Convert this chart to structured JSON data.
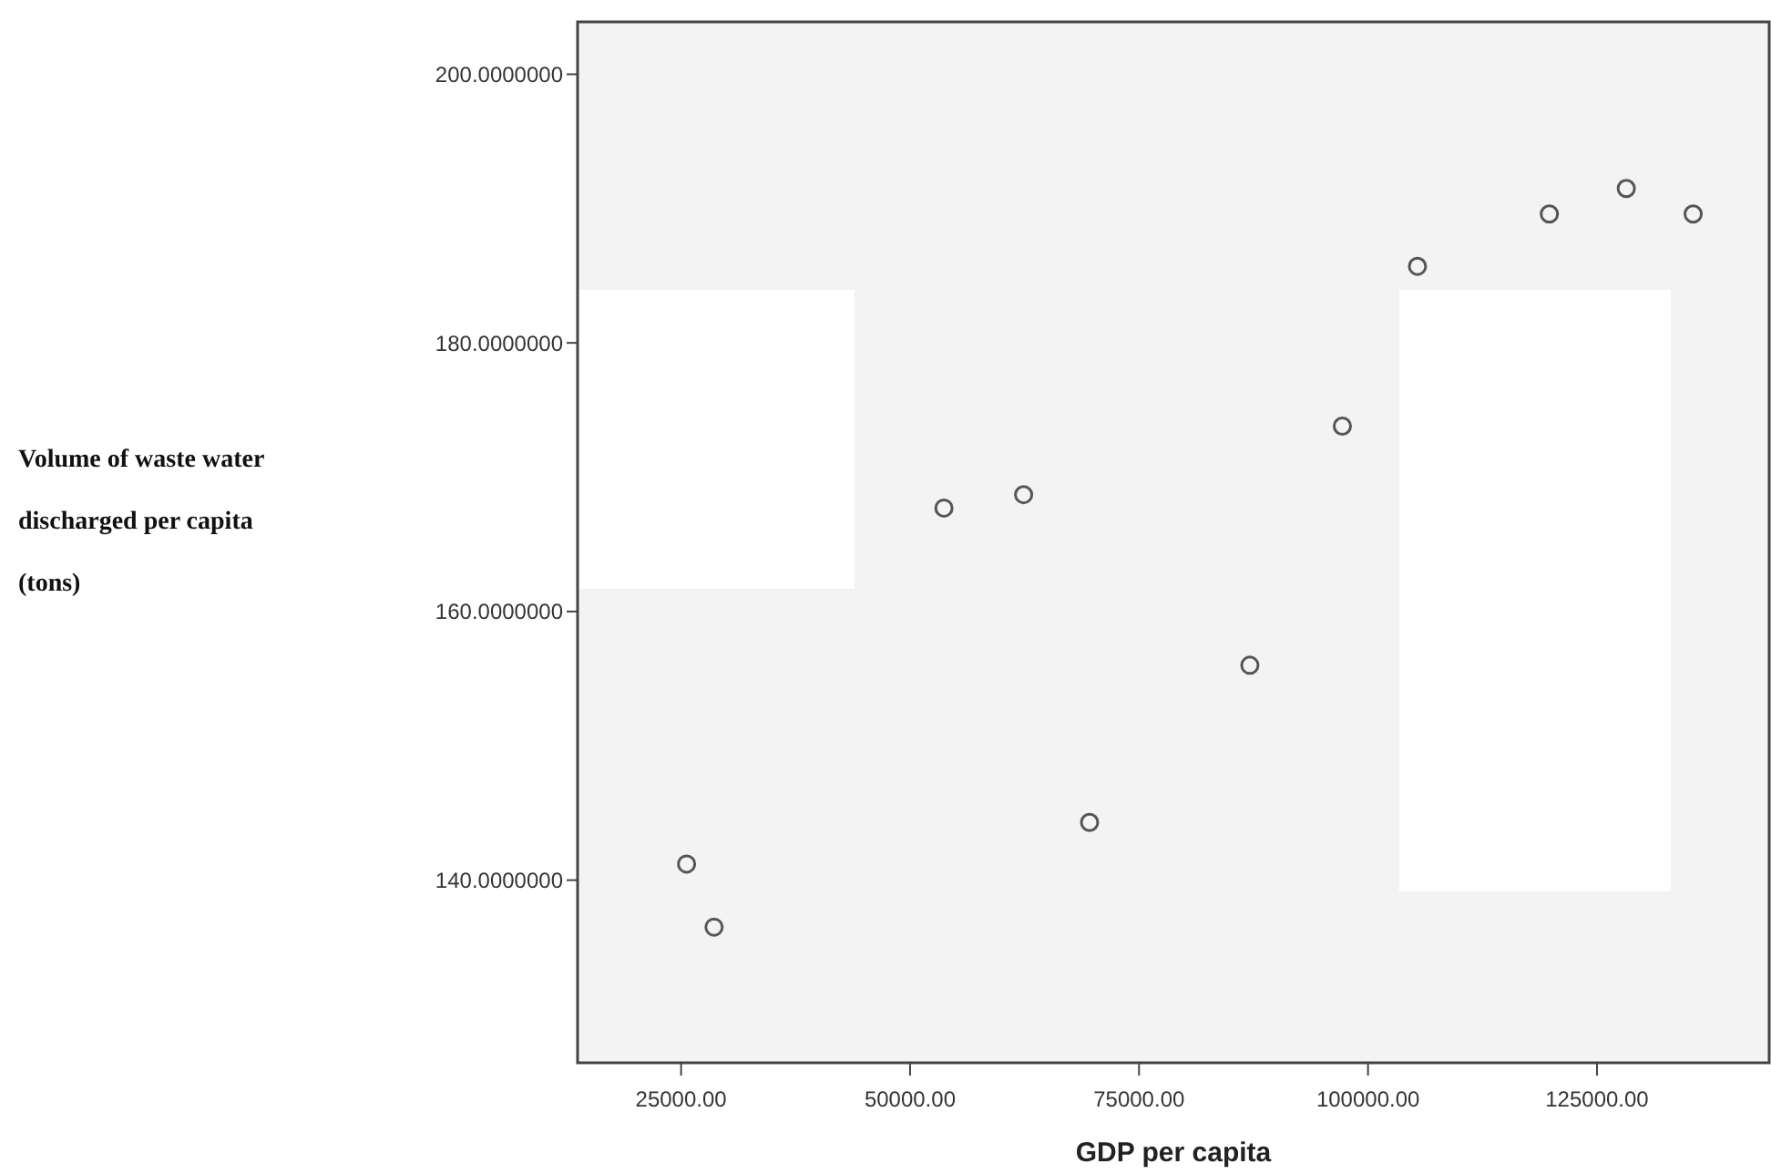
{
  "chart_data": {
    "type": "scatter",
    "xlabel": "GDP per capita",
    "ylabel": "Volume of waste water discharged per capita (tons)",
    "x": [
      25600,
      28600,
      53700,
      62400,
      69600,
      87100,
      97200,
      105400,
      119800,
      128200,
      135500
    ],
    "series": [
      {
        "color": "#555555",
        "values": [
          141.2,
          136.5,
          167.7,
          168.7,
          144.3,
          156.0,
          173.8,
          185.7,
          189.6,
          191.5,
          189.6
        ]
      }
    ],
    "xlim": [
      13700,
      143800
    ],
    "ylim": [
      126.4,
      203.9
    ],
    "xticks": [
      {
        "value": 25000,
        "label": "25000.00"
      },
      {
        "value": 50000,
        "label": "50000.00"
      },
      {
        "value": 75000,
        "label": "75000.00"
      },
      {
        "value": 100000,
        "label": "100000.00"
      },
      {
        "value": 125000,
        "label": "125000.00"
      }
    ],
    "yticks": [
      {
        "value": 140,
        "label": "140.0000000"
      },
      {
        "value": 160,
        "label": "160.0000000"
      },
      {
        "value": 180,
        "label": "180.0000000"
      },
      {
        "value": 200,
        "label": "200.0000000"
      }
    ],
    "marker": "circle",
    "grid": false
  }
}
